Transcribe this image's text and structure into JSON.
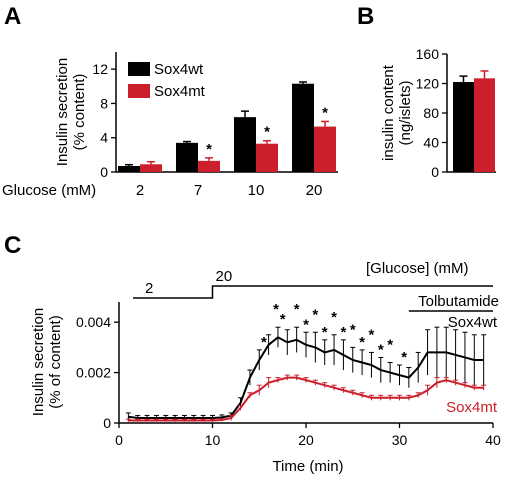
{
  "panel_letters": [
    "A",
    "B",
    "C"
  ],
  "colors": {
    "wt": "#000000",
    "mt": "#cc1f2b"
  },
  "chart_data": [
    {
      "panel": "A",
      "type": "bar",
      "ylabel": "Insulin secretion\n(% content)",
      "xlabel": "Glucose (mM)",
      "categories": [
        "2",
        "7",
        "10",
        "20"
      ],
      "yticks": [
        0,
        4,
        8,
        12
      ],
      "ylim": [
        0,
        14
      ],
      "series": [
        {
          "name": "Sox4wt",
          "color": "#000000",
          "values": [
            0.7,
            3.4,
            6.4,
            10.3
          ],
          "errors": [
            0.15,
            0.15,
            0.7,
            0.2
          ]
        },
        {
          "name": "Sox4mt",
          "color": "#cc1f2b",
          "values": [
            0.9,
            1.3,
            3.3,
            5.3
          ],
          "errors": [
            0.3,
            0.35,
            0.35,
            0.6
          ]
        }
      ],
      "significance": [
        "",
        "*",
        "*",
        "*"
      ],
      "legend": "top-left"
    },
    {
      "panel": "B",
      "type": "bar",
      "ylabel": "insulin content\n(ng/islets)",
      "yticks": [
        0,
        40,
        80,
        120,
        160
      ],
      "ylim": [
        0,
        160
      ],
      "series": [
        {
          "name": "Sox4wt",
          "color": "#000000",
          "values": [
            122
          ],
          "errors": [
            8
          ]
        },
        {
          "name": "Sox4mt",
          "color": "#cc1f2b",
          "values": [
            127
          ],
          "errors": [
            10
          ]
        }
      ]
    },
    {
      "panel": "C",
      "type": "line",
      "xlabel": "Time (min)",
      "ylabel": "Insulin secretion\n(% of content)",
      "xticks": [
        0,
        10,
        20,
        30,
        40
      ],
      "xlim": [
        0,
        40
      ],
      "yticks": [
        0,
        0.002,
        0.004
      ],
      "ytick_labels": [
        "0",
        "0.002",
        "0.004"
      ],
      "ylim": [
        0,
        0.0048
      ],
      "glucose_title": "[Glucose] (mM)",
      "glucose_steps": [
        {
          "label": "2",
          "start": 1.5,
          "end": 10
        },
        {
          "label": "20",
          "start": 10,
          "end": 40
        }
      ],
      "tolbutamide": {
        "label": "Tolbutamide",
        "start": 31,
        "end": 40
      },
      "x": [
        1,
        2,
        3,
        4,
        5,
        6,
        7,
        8,
        9,
        10,
        11,
        12,
        13,
        14,
        15,
        16,
        17,
        18,
        19,
        20,
        21,
        22,
        23,
        24,
        25,
        26,
        27,
        28,
        29,
        30,
        31,
        32,
        33,
        34,
        35,
        36,
        37,
        38,
        39
      ],
      "series": [
        {
          "name": "Sox4wt",
          "color": "#000000",
          "y": [
            0.00025,
            0.0002,
            0.0002,
            0.0002,
            0.0002,
            0.0002,
            0.0002,
            0.0002,
            0.0002,
            0.0002,
            0.00022,
            0.0003,
            0.0008,
            0.0018,
            0.0025,
            0.0031,
            0.0034,
            0.0032,
            0.0033,
            0.0031,
            0.003,
            0.0028,
            0.0029,
            0.0027,
            0.0025,
            0.0024,
            0.0023,
            0.0021,
            0.002,
            0.0019,
            0.0018,
            0.0022,
            0.0028,
            0.0028,
            0.0028,
            0.0027,
            0.0026,
            0.0025,
            0.0025
          ],
          "err": [
            0.00015,
            0.0001,
            0.0001,
            0.0001,
            0.0001,
            0.0001,
            0.0001,
            0.0001,
            0.0001,
            0.0001,
            0.0001,
            0.0001,
            0.0002,
            0.0003,
            0.0004,
            0.0004,
            0.0004,
            0.0005,
            0.0005,
            0.0005,
            0.0006,
            0.0005,
            0.0006,
            0.0006,
            0.0005,
            0.0005,
            0.0005,
            0.0005,
            0.0004,
            0.0004,
            0.0004,
            0.0006,
            0.0009,
            0.001,
            0.001,
            0.001,
            0.001,
            0.001,
            0.001
          ]
        },
        {
          "name": "Sox4mt",
          "color": "#cc1f2b",
          "y": [
            0.0001,
            0.0001,
            0.0001,
            0.0001,
            0.0001,
            0.0001,
            0.0001,
            0.0001,
            0.0001,
            0.0001,
            0.00012,
            0.0002,
            0.0006,
            0.0011,
            0.0013,
            0.0016,
            0.0017,
            0.0018,
            0.0018,
            0.0017,
            0.0016,
            0.0015,
            0.0014,
            0.0013,
            0.0012,
            0.0011,
            0.001,
            0.001,
            0.001,
            0.001,
            0.001,
            0.0011,
            0.0013,
            0.0016,
            0.0017,
            0.0016,
            0.0015,
            0.0014,
            0.0014
          ],
          "err": [
            5e-05,
            5e-05,
            5e-05,
            5e-05,
            5e-05,
            5e-05,
            5e-05,
            5e-05,
            5e-05,
            5e-05,
            5e-05,
            0.0001,
            0.0001,
            0.0001,
            0.0002,
            0.0002,
            0.0001,
            0.0001,
            0.0001,
            0.0001,
            0.0001,
            0.0001,
            0.0001,
            0.0001,
            0.0001,
            0.0001,
            0.0001,
            0.0001,
            0.0001,
            0.0001,
            0.0001,
            0.0001,
            0.0002,
            0.0002,
            0.0001,
            0.0001,
            0.0001,
            0.0001,
            0.0001
          ]
        }
      ],
      "significance": [
        {
          "x": 15.5,
          "label": "*"
        },
        {
          "x": 16.8,
          "label": "*"
        },
        {
          "x": 17.5,
          "label": "*"
        },
        {
          "x": 19,
          "label": "*"
        },
        {
          "x": 20,
          "label": "*"
        },
        {
          "x": 21,
          "label": "*"
        },
        {
          "x": 22,
          "label": "*"
        },
        {
          "x": 23,
          "label": "*"
        },
        {
          "x": 24,
          "label": "*"
        },
        {
          "x": 25,
          "label": "*"
        },
        {
          "x": 26,
          "label": "*"
        },
        {
          "x": 27,
          "label": "*"
        },
        {
          "x": 28,
          "label": "*"
        },
        {
          "x": 29,
          "label": "*"
        },
        {
          "x": 30.5,
          "label": "*"
        }
      ]
    }
  ]
}
